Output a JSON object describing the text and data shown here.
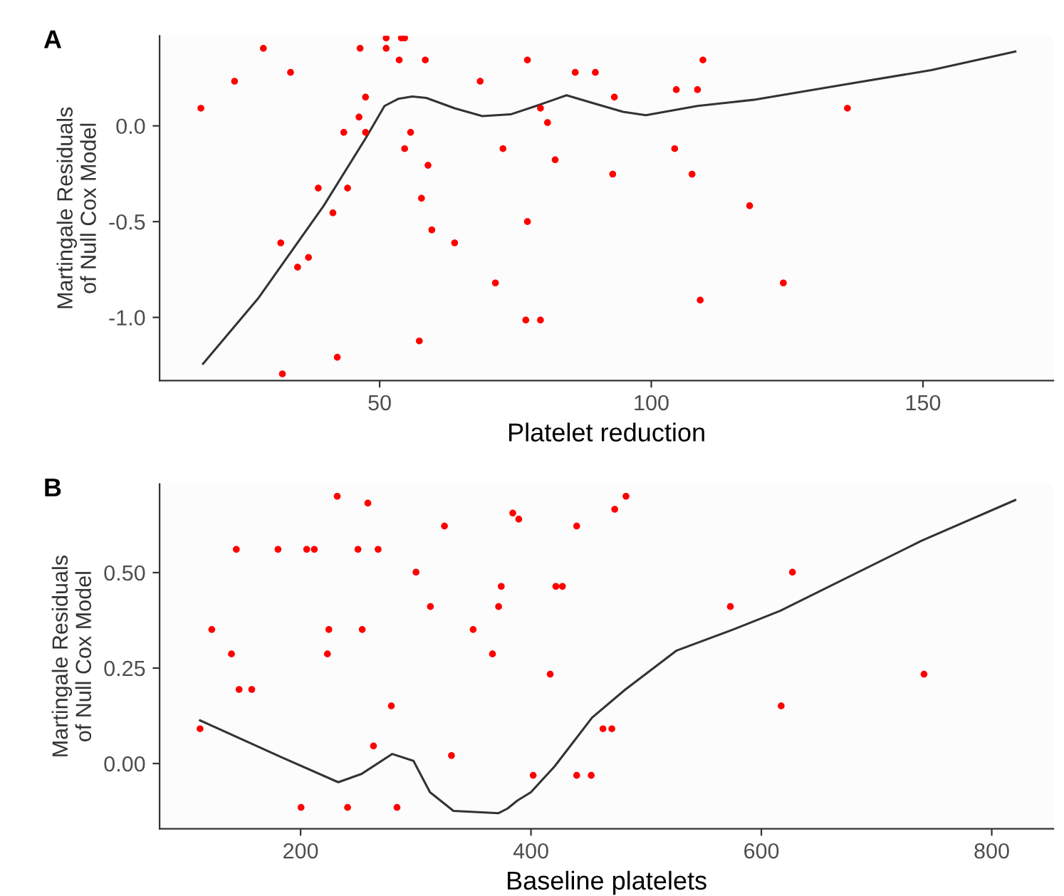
{
  "chart_data": [
    {
      "type": "scatter",
      "title": "A",
      "xlabel": "Platelet reduction",
      "ylabel": "Martingale Residuals\nof Null Cox Model",
      "xlim": [
        9.5,
        174
      ],
      "ylim": [
        -1.33,
        0.47
      ],
      "xticks": [
        50,
        100,
        150
      ],
      "yticks": [
        {
          "value": -1.0,
          "label": "-1.0"
        },
        {
          "value": -0.5,
          "label": "-0.5"
        },
        {
          "value": 0.0,
          "label": "0.0"
        }
      ],
      "grid": false,
      "legend": false,
      "series": [
        {
          "type": "scatter",
          "color": "#ff0000",
          "marker": "circle",
          "x": [
            17.1,
            23.3,
            28.6,
            33.6,
            46.4,
            51.2,
            51.2,
            54.0,
            54.6,
            53.6,
            58.4,
            68.5,
            77.2,
            47.4,
            46.2,
            43.4,
            47.4,
            55.7,
            54.6,
            72.7,
            58.9,
            38.7,
            44.1,
            57.7,
            41.4,
            77.2,
            59.6,
            31.8,
            63.8,
            36.9,
            34.9,
            71.3,
            76.9,
            79.6,
            57.3,
            42.2,
            32.1,
            86.0,
            89.7,
            93.2,
            79.6,
            80.9,
            82.3,
            92.9,
            104.3,
            104.6,
            108.5,
            109.5,
            107.5,
            118.1,
            124.3,
            109.0,
            136.1
          ],
          "values": [
            0.092,
            0.233,
            0.405,
            0.279,
            0.405,
            0.459,
            0.405,
            0.459,
            0.459,
            0.344,
            0.344,
            0.233,
            0.344,
            0.15,
            0.046,
            -0.034,
            -0.034,
            -0.034,
            -0.119,
            -0.119,
            -0.206,
            -0.325,
            -0.325,
            -0.378,
            -0.454,
            -0.5,
            -0.543,
            -0.611,
            -0.611,
            -0.687,
            -0.738,
            -0.82,
            -1.014,
            -1.014,
            -1.123,
            -1.208,
            -1.295,
            0.279,
            0.279,
            0.15,
            0.092,
            0.017,
            -0.177,
            -0.252,
            -0.119,
            0.189,
            0.189,
            0.344,
            -0.252,
            -0.417,
            -0.82,
            -0.91,
            0.092
          ]
        },
        {
          "type": "line",
          "color": "#333333",
          "line_style": "solid",
          "x": [
            17.5,
            27.6,
            39.7,
            47.4,
            50.9,
            53.4,
            56.0,
            58.6,
            63.8,
            68.9,
            74.1,
            78.8,
            84.4,
            89.6,
            94.8,
            99.0,
            108.5,
            118.8,
            136.1,
            151.5,
            167.0
          ],
          "values": [
            -1.242,
            -0.902,
            -0.417,
            -0.066,
            0.104,
            0.141,
            0.153,
            0.146,
            0.092,
            0.051,
            0.06,
            0.104,
            0.16,
            0.116,
            0.073,
            0.056,
            0.104,
            0.136,
            0.218,
            0.291,
            0.388
          ]
        }
      ]
    },
    {
      "type": "scatter",
      "title": "B",
      "xlabel": "Baseline platelets",
      "ylabel": "Martingale Residuals\nof Null Cox Model",
      "xlim": [
        77.6,
        853.5
      ],
      "ylim": [
        -0.171,
        0.732
      ],
      "xticks": [
        200,
        400,
        600,
        800
      ],
      "yticks": [
        {
          "value": 0.0,
          "label": "0.00"
        },
        {
          "value": 0.25,
          "label": "0.25"
        },
        {
          "value": 0.5,
          "label": "0.50"
        }
      ],
      "grid": false,
      "legend": false,
      "series": [
        {
          "type": "scatter",
          "color": "#ff0000",
          "marker": "circle",
          "x": [
            231.8,
            258.4,
            324.9,
            384.2,
            389.4,
            144.2,
            180.4,
            205.3,
            211.9,
            249.8,
            267.3,
            300.2,
            312.7,
            374.2,
            371.9,
            122.9,
            224.5,
            253.5,
            349.8,
            140.0,
            223.3,
            366.6,
            146.6,
            157.6,
            278.8,
            112.7,
            263.3,
            331.0,
            401.9,
            200.4,
            240.8,
            283.7,
            482.5,
            472.7,
            439.7,
            421.6,
            427.3,
            627.0,
            573.1,
            416.7,
            741.2,
            617.2,
            462.5,
            470.2,
            439.7,
            452.3
          ],
          "values": [
            0.7,
            0.682,
            0.622,
            0.656,
            0.64,
            0.561,
            0.561,
            0.561,
            0.561,
            0.561,
            0.561,
            0.501,
            0.411,
            0.464,
            0.411,
            0.351,
            0.351,
            0.351,
            0.351,
            0.287,
            0.287,
            0.287,
            0.194,
            0.194,
            0.151,
            0.091,
            0.046,
            0.021,
            -0.031,
            -0.115,
            -0.115,
            -0.115,
            0.7,
            0.666,
            0.622,
            0.464,
            0.464,
            0.501,
            0.411,
            0.234,
            0.234,
            0.151,
            0.091,
            0.091,
            -0.031,
            -0.031
          ]
        },
        {
          "type": "line",
          "color": "#333333",
          "line_style": "solid",
          "x": [
            112.7,
            183.7,
            232.7,
            253.1,
            279.6,
            298.0,
            312.3,
            332.7,
            371.9,
            379.6,
            388.2,
            400.0,
            420.4,
            453.0,
            481.6,
            526.5,
            575.5,
            616.3,
            738.8,
            820.4
          ],
          "values": [
            0.113,
            0.016,
            -0.049,
            -0.027,
            0.025,
            0.007,
            -0.075,
            -0.124,
            -0.13,
            -0.118,
            -0.097,
            -0.075,
            -0.008,
            0.12,
            0.193,
            0.296,
            0.351,
            0.4,
            0.583,
            0.69
          ]
        }
      ]
    }
  ]
}
